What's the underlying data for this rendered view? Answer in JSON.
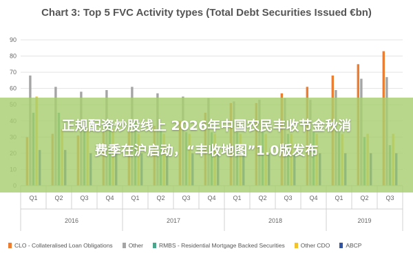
{
  "chart_data": {
    "type": "bar",
    "title": "Chart 3: Top 5 FVC Activity types (Total Debt Securities Issued €bn)",
    "xlabel": "",
    "ylabel": "",
    "ylim": [
      0,
      90
    ],
    "yticks": [
      0,
      10,
      20,
      30,
      40,
      50,
      60,
      70,
      80,
      90
    ],
    "grid": true,
    "legend_position": "bottom",
    "categories": [
      "Q1",
      "Q2",
      "Q3",
      "Q4",
      "Q1",
      "Q2",
      "Q3",
      "Q4",
      "Q1",
      "Q2",
      "Q3",
      "Q4",
      "Q1",
      "Q2",
      "Q3"
    ],
    "year_groups": [
      {
        "label": "2016",
        "count": 4
      },
      {
        "label": "2017",
        "count": 4
      },
      {
        "label": "2018",
        "count": 4
      },
      {
        "label": "2019",
        "count": 3
      }
    ],
    "series": [
      {
        "name": "CLO - Collateralised Loan Obligations",
        "color": "#ED7D31",
        "values": [
          30,
          32,
          31,
          33,
          33,
          37,
          40,
          45,
          51,
          51,
          57,
          61,
          68,
          75,
          83
        ]
      },
      {
        "name": "Other",
        "color": "#A5A5A5",
        "values": [
          68,
          61,
          58,
          59,
          61,
          57,
          55,
          54,
          52,
          53,
          54,
          53,
          59,
          66,
          67
        ]
      },
      {
        "name": "RMBS - Residential Mortgage Backed Securities",
        "color": "#4CA68C",
        "values": [
          45,
          45,
          40,
          39,
          39,
          35,
          33,
          33,
          33,
          33,
          32,
          33,
          33,
          30,
          25
        ]
      },
      {
        "name": "Other CDO",
        "color": "#F2C230",
        "values": [
          55,
          35,
          35,
          35,
          32,
          32,
          32,
          32,
          32,
          32,
          32,
          32,
          32,
          32,
          32
        ]
      },
      {
        "name": "ABCP",
        "color": "#2F55A4",
        "values": [
          22,
          22,
          20,
          20,
          20,
          20,
          20,
          20,
          20,
          20,
          20,
          20,
          20,
          20,
          20
        ]
      }
    ]
  },
  "overlay": {
    "line1": "正规配资炒股线上 2026年中国农民丰收节金秋消",
    "line2": "费季在沪启动，“丰收地图”1.0版发布"
  }
}
